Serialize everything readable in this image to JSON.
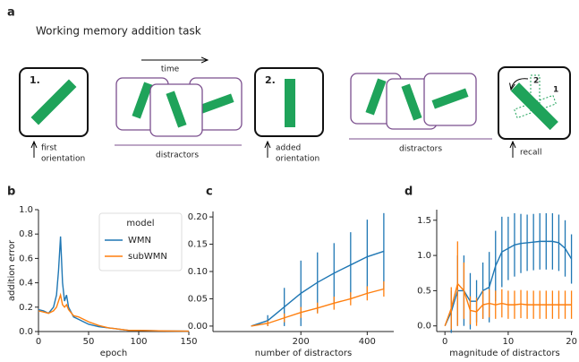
{
  "diagram": {
    "panel": "a",
    "title": "Working memory addition task",
    "box1_label": "1.",
    "box2_label": "2.",
    "time": "time",
    "distractors_1": "distractors",
    "distractors_2": "distractors",
    "first_orientation": [
      "first",
      "orientation"
    ],
    "added_orientation": [
      "added",
      "orientation"
    ],
    "recall": "recall",
    "recall_marks": [
      "2",
      "1"
    ]
  },
  "chart_data": [
    {
      "type": "line",
      "panel": "b",
      "xlabel": "epoch",
      "ylabel": "addition error",
      "x": [
        0,
        5,
        10,
        15,
        18,
        20,
        22,
        24,
        26,
        28,
        30,
        35,
        40,
        45,
        50,
        60,
        70,
        80,
        90,
        100,
        125,
        150
      ],
      "series": [
        {
          "name": "WMN",
          "color": "#1f77b4",
          "values": [
            0.18,
            0.17,
            0.15,
            0.2,
            0.3,
            0.5,
            0.78,
            0.4,
            0.25,
            0.3,
            0.2,
            0.12,
            0.1,
            0.08,
            0.06,
            0.04,
            0.03,
            0.02,
            0.01,
            0.01,
            0.005,
            0.003
          ]
        },
        {
          "name": "subWMN",
          "color": "#ff7f0e",
          "values": [
            0.17,
            0.16,
            0.15,
            0.17,
            0.2,
            0.25,
            0.3,
            0.22,
            0.2,
            0.22,
            0.18,
            0.13,
            0.12,
            0.1,
            0.08,
            0.05,
            0.03,
            0.02,
            0.01,
            0.01,
            0.005,
            0.003
          ]
        }
      ],
      "xlim": [
        0,
        150
      ],
      "ylim": [
        0,
        1
      ],
      "xticks": [
        0,
        50,
        100,
        150
      ],
      "yticks": [
        {
          "value": 0,
          "label": "0.0"
        },
        {
          "value": 0.2,
          "label": "0.2"
        },
        {
          "value": 0.4,
          "label": "0.4"
        },
        {
          "value": 0.6,
          "label": "0.6"
        },
        {
          "value": 0.8,
          "label": "0.8"
        },
        {
          "value": 1,
          "label": "1.0"
        }
      ],
      "legend": "upper right",
      "legend_title": "model"
    },
    {
      "type": "line",
      "panel": "c",
      "xlabel": "number of distractors",
      "x": [
        50,
        100,
        150,
        200,
        250,
        300,
        350,
        400,
        450
      ],
      "series": [
        {
          "name": "WMN",
          "color": "#1f77b4",
          "values": [
            0.0,
            0.01,
            0.035,
            0.06,
            0.08,
            0.097,
            0.112,
            0.127,
            0.137
          ],
          "errors": [
            0,
            0.01,
            0.035,
            0.06,
            0.055,
            0.055,
            0.06,
            0.068,
            0.07
          ]
        },
        {
          "name": "subWMN",
          "color": "#ff7f0e",
          "values": [
            0.0,
            0.005,
            0.015,
            0.025,
            0.033,
            0.042,
            0.05,
            0.06,
            0.068
          ],
          "errors": [
            0,
            0.005,
            0.008,
            0.01,
            0.01,
            0.012,
            0.012,
            0.013,
            0.014
          ]
        }
      ],
      "xlim": [
        -65,
        480
      ],
      "ylim": [
        -0.01,
        0.21
      ],
      "xticks": [
        200,
        400
      ],
      "yticks": [
        {
          "value": 0,
          "label": "0.00"
        },
        {
          "value": 0.05,
          "label": "0.05"
        },
        {
          "value": 0.1,
          "label": "0.10"
        },
        {
          "value": 0.15,
          "label": "0.15"
        },
        {
          "value": 0.2,
          "label": "0.20"
        }
      ]
    },
    {
      "type": "line",
      "panel": "d",
      "xlabel": "magnitude of distractors",
      "x": [
        0,
        1,
        2,
        3,
        4,
        5,
        6,
        7,
        8,
        9,
        10,
        11,
        12,
        13,
        14,
        15,
        16,
        17,
        18,
        19,
        20
      ],
      "series": [
        {
          "name": "WMN",
          "color": "#1f77b4",
          "values": [
            0.0,
            0.2,
            0.5,
            0.5,
            0.35,
            0.35,
            0.5,
            0.55,
            0.85,
            1.05,
            1.1,
            1.15,
            1.17,
            1.18,
            1.19,
            1.2,
            1.2,
            1.2,
            1.18,
            1.1,
            0.95
          ],
          "errors": [
            0,
            0.3,
            0.5,
            0.5,
            0.4,
            0.3,
            0.4,
            0.5,
            0.5,
            0.5,
            0.45,
            0.45,
            0.42,
            0.4,
            0.4,
            0.4,
            0.4,
            0.4,
            0.4,
            0.4,
            0.35
          ]
        },
        {
          "name": "subWMN",
          "color": "#ff7f0e",
          "values": [
            0.0,
            0.25,
            0.6,
            0.5,
            0.22,
            0.2,
            0.3,
            0.32,
            0.3,
            0.32,
            0.3,
            0.3,
            0.31,
            0.3,
            0.3,
            0.3,
            0.3,
            0.3,
            0.3,
            0.3,
            0.3
          ],
          "errors": [
            0,
            0.3,
            0.6,
            0.4,
            0.2,
            0.2,
            0.2,
            0.2,
            0.2,
            0.2,
            0.2,
            0.2,
            0.2,
            0.2,
            0.2,
            0.2,
            0.2,
            0.2,
            0.2,
            0.2,
            0.2
          ]
        }
      ],
      "xlim": [
        -1.3,
        20.2
      ],
      "ylim": [
        -0.08,
        1.65
      ],
      "xticks": [
        0,
        10,
        20
      ],
      "yticks": [
        {
          "value": 0,
          "label": "0.0"
        },
        {
          "value": 0.5,
          "label": "0.5"
        },
        {
          "value": 1,
          "label": "1.0"
        },
        {
          "value": 1.5,
          "label": "1.5"
        }
      ]
    }
  ]
}
